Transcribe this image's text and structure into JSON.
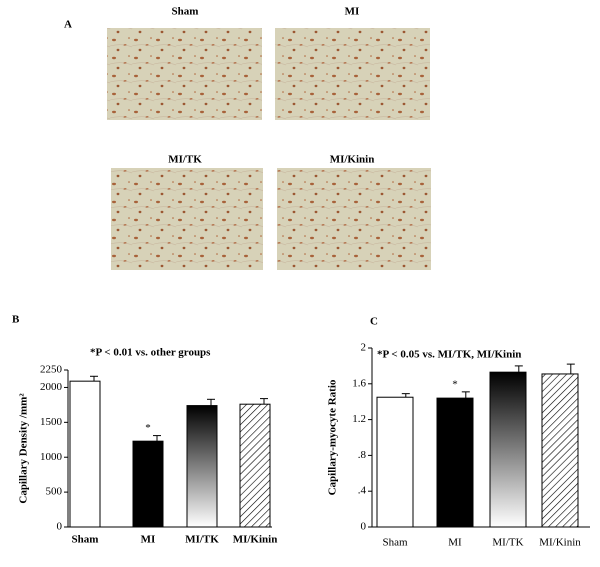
{
  "panels": {
    "a": "A",
    "b": "B",
    "c": "C"
  },
  "images": [
    "Sham",
    "MI",
    "MI/TK",
    "MI/Kinin"
  ],
  "chart_data": [
    {
      "type": "bar",
      "note": "*P < 0.01 vs. other groups",
      "ylabel": "Capillary Density /mm²",
      "categories": [
        "Sham",
        "MI",
        "MI/TK",
        "MI/Kinin"
      ],
      "values": [
        2090,
        1230,
        1740,
        1760
      ],
      "errors": [
        70,
        80,
        90,
        80
      ],
      "stars": [
        null,
        "*",
        null,
        null
      ],
      "fills": [
        "white",
        "black",
        "gradient",
        "hatch"
      ],
      "ylim": [
        0,
        2250
      ],
      "yticks": [
        0,
        500,
        1000,
        1500,
        2000,
        2250
      ]
    },
    {
      "type": "bar",
      "note": "*P < 0.05 vs. MI/TK, MI/Kinin",
      "ylabel": "Capillary-myocyte Ratio",
      "categories": [
        "Sham",
        "MI",
        "MI/TK",
        "MI/Kinin"
      ],
      "values": [
        1.45,
        1.44,
        1.73,
        1.71
      ],
      "errors": [
        0.04,
        0.07,
        0.07,
        0.11
      ],
      "stars": [
        null,
        "*",
        null,
        null
      ],
      "fills": [
        "white",
        "black",
        "gradient",
        "hatch"
      ],
      "ylim": [
        0,
        2
      ],
      "yticks": [
        0,
        {
          "value": 0.4,
          "label": ".4"
        },
        {
          "value": 0.8,
          "label": ".8"
        },
        1.2,
        1.6,
        2
      ]
    }
  ]
}
